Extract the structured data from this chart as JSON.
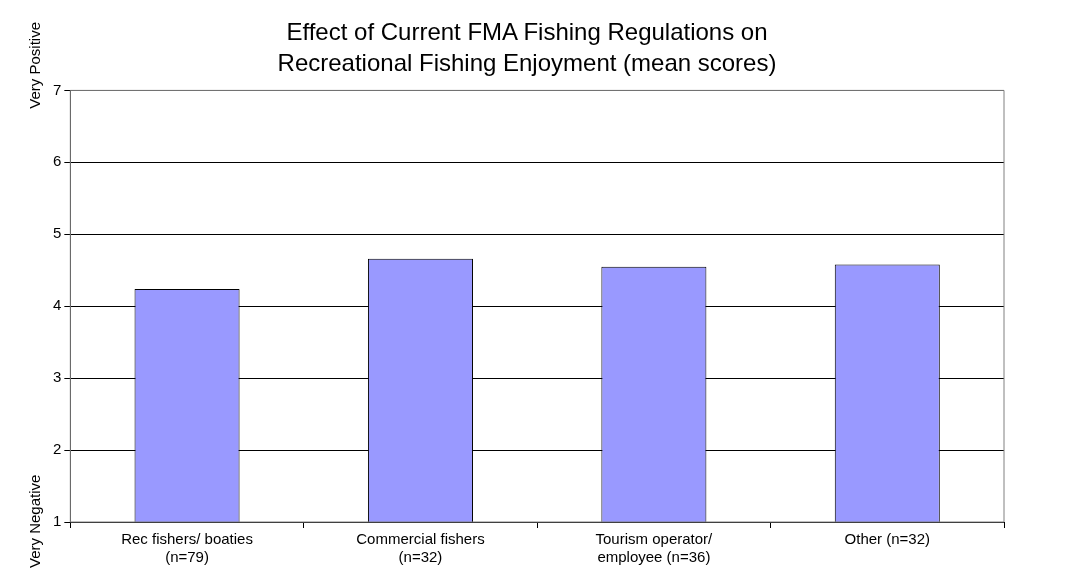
{
  "chart_data": {
    "type": "bar",
    "title": "Effect of Current FMA Fishing Regulations on Recreational Fishing Enjoyment (mean scores)",
    "categories": [
      "Rec fishers/ boaties (n=79)",
      "Commercial fishers (n=32)",
      "Tourism operator/ employee (n=36)",
      "Other (n=32)"
    ],
    "values": [
      4.24,
      4.66,
      4.55,
      4.58
    ],
    "color": "#9999ff",
    "ylim": [
      1,
      7
    ],
    "yticks": [
      1,
      2,
      3,
      4,
      5,
      6,
      7
    ],
    "grid": "y",
    "annotations": [
      "Very Positive",
      "Very Negative"
    ]
  }
}
